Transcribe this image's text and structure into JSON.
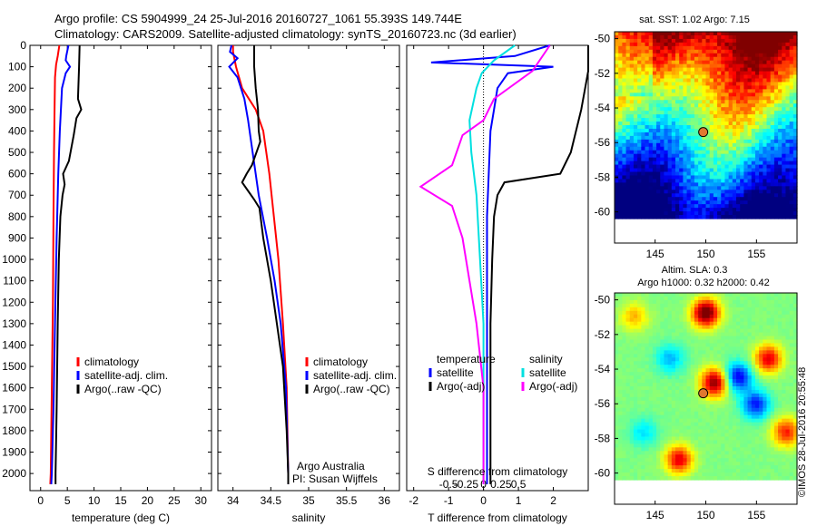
{
  "header": {
    "line1": "Argo profile: CS 5904999_24 25-Jul-2016 20160727_1061 55.393S 149.744E",
    "line2": "Climatology: CARS2009. Satellite-adjusted climatology: synTS_20160723.nc (3d earlier)"
  },
  "colors": {
    "climatology": "#ff0000",
    "satellite": "#0000ff",
    "argo": "#000000",
    "s_satellite": "#00e0e0",
    "s_argo": "#ff00ff"
  },
  "legend_labels": {
    "climatology": "climatology",
    "satellite_adj": "satellite-adj. clim.",
    "argo_raw": "Argo(..raw -QC)",
    "temperature": "temperature",
    "salinity": "salinity",
    "satellite": "satellite",
    "argo_adj": "Argo(-adj)"
  },
  "annotations": {
    "argo_australia": "Argo Australia",
    "pi": "PI: Susan Wijffels"
  },
  "copyright": "©IMOS 28-Jul-2016 20:55:48",
  "chart_data": [
    {
      "id": "temperature",
      "type": "line",
      "xlabel": "temperature (deg C)",
      "ylabel": "",
      "xlim": [
        -2,
        32
      ],
      "ylim": [
        2080,
        0
      ],
      "xticks": [
        0,
        5,
        10,
        15,
        20,
        25,
        30
      ],
      "yticks": [
        0,
        100,
        200,
        300,
        400,
        500,
        600,
        700,
        800,
        900,
        1000,
        1100,
        1200,
        1300,
        1400,
        1500,
        1600,
        1700,
        1800,
        1900,
        2000
      ],
      "legend": "lower-center",
      "series": [
        {
          "role": "climatology",
          "points": [
            [
              3.5,
              0
            ],
            [
              3.2,
              50
            ],
            [
              2.9,
              90
            ],
            [
              2.7,
              150
            ],
            [
              2.6,
              300
            ],
            [
              2.5,
              500
            ],
            [
              2.4,
              800
            ],
            [
              2.3,
              1200
            ],
            [
              2.1,
              1600
            ],
            [
              1.9,
              2000
            ],
            [
              1.8,
              2050
            ]
          ]
        },
        {
          "role": "satellite",
          "points": [
            [
              5.2,
              0
            ],
            [
              4.8,
              50
            ],
            [
              4.7,
              70
            ],
            [
              5.5,
              100
            ],
            [
              4.7,
              130
            ],
            [
              4.0,
              200
            ],
            [
              3.6,
              400
            ],
            [
              3.3,
              600
            ],
            [
              3.0,
              900
            ],
            [
              2.7,
              1300
            ],
            [
              2.4,
              1700
            ],
            [
              2.1,
              2000
            ],
            [
              2.0,
              2050
            ]
          ]
        },
        {
          "role": "argo",
          "points": [
            [
              7.3,
              0
            ],
            [
              7.2,
              100
            ],
            [
              7.0,
              250
            ],
            [
              7.6,
              300
            ],
            [
              6.7,
              340
            ],
            [
              6.2,
              420
            ],
            [
              5.3,
              540
            ],
            [
              4.2,
              600
            ],
            [
              4.5,
              650
            ],
            [
              4.1,
              700
            ],
            [
              3.7,
              800
            ],
            [
              3.4,
              1000
            ],
            [
              3.2,
              1300
            ],
            [
              3.0,
              1700
            ],
            [
              2.8,
              2000
            ],
            [
              2.8,
              2050
            ]
          ]
        }
      ]
    },
    {
      "id": "salinity",
      "type": "line",
      "xlabel": "salinity",
      "ylabel": "",
      "xlim": [
        33.8,
        36.2
      ],
      "ylim": [
        2080,
        0
      ],
      "xticks": [
        34,
        34.5,
        35,
        35.5,
        36
      ],
      "yticks": [
        0,
        100,
        200,
        300,
        400,
        500,
        600,
        700,
        800,
        900,
        1000,
        1100,
        1200,
        1300,
        1400,
        1500,
        1600,
        1700,
        1800,
        1900,
        2000
      ],
      "legend": "lower-center",
      "series": [
        {
          "role": "climatology",
          "points": [
            [
              34.0,
              0
            ],
            [
              34.0,
              30
            ],
            [
              34.04,
              100
            ],
            [
              34.12,
              200
            ],
            [
              34.3,
              300
            ],
            [
              34.4,
              400
            ],
            [
              34.48,
              600
            ],
            [
              34.54,
              800
            ],
            [
              34.6,
              1000
            ],
            [
              34.66,
              1300
            ],
            [
              34.71,
              1600
            ],
            [
              34.73,
              2000
            ],
            [
              34.73,
              2050
            ]
          ]
        },
        {
          "role": "satellite",
          "points": [
            [
              33.98,
              0
            ],
            [
              33.96,
              30
            ],
            [
              34.06,
              60
            ],
            [
              33.95,
              100
            ],
            [
              34.06,
              150
            ],
            [
              34.15,
              250
            ],
            [
              34.2,
              350
            ],
            [
              34.26,
              500
            ],
            [
              34.34,
              700
            ],
            [
              34.45,
              900
            ],
            [
              34.55,
              1100
            ],
            [
              34.63,
              1300
            ],
            [
              34.7,
              1600
            ],
            [
              34.73,
              2000
            ],
            [
              34.73,
              2050
            ]
          ]
        },
        {
          "role": "argo",
          "points": [
            [
              34.28,
              0
            ],
            [
              34.28,
              100
            ],
            [
              34.3,
              200
            ],
            [
              34.33,
              300
            ],
            [
              34.34,
              400
            ],
            [
              34.36,
              450
            ],
            [
              34.25,
              560
            ],
            [
              34.18,
              600
            ],
            [
              34.12,
              640
            ],
            [
              34.2,
              680
            ],
            [
              34.28,
              720
            ],
            [
              34.35,
              760
            ],
            [
              34.4,
              900
            ],
            [
              34.5,
              1100
            ],
            [
              34.58,
              1300
            ],
            [
              34.66,
              1500
            ],
            [
              34.71,
              1800
            ],
            [
              34.73,
              2000
            ],
            [
              34.73,
              2050
            ]
          ]
        }
      ]
    },
    {
      "id": "difference",
      "type": "line",
      "xlabel": "T difference from climatology",
      "ylabel": "",
      "title": "S difference from climatology",
      "xlim": [
        -2.2,
        3.0
      ],
      "ylim": [
        2080,
        0
      ],
      "xticks": [
        -2,
        -1,
        0,
        1,
        2
      ],
      "x2ticks": [
        -0.5,
        -0.25,
        0,
        0.25,
        0.5
      ],
      "yticks": [
        0,
        100,
        200,
        300,
        400,
        500,
        600,
        700,
        800,
        900,
        1000,
        1100,
        1200,
        1300,
        1400,
        1500,
        1600,
        1700,
        1800,
        1900,
        2000
      ],
      "legend": "lower-center",
      "series": [
        {
          "role": "satellite",
          "points": [
            [
              1.9,
              0
            ],
            [
              0.9,
              50
            ],
            [
              -1.5,
              80
            ],
            [
              2.0,
              100
            ],
            [
              0.7,
              130
            ],
            [
              0.4,
              200
            ],
            [
              0.3,
              300
            ],
            [
              0.2,
              400
            ],
            [
              0.15,
              600
            ],
            [
              0.1,
              800
            ],
            [
              0.1,
              1200
            ],
            [
              0.1,
              1600
            ],
            [
              0.1,
              2050
            ]
          ]
        },
        {
          "role": "argo",
          "points": [
            [
              3.0,
              0
            ],
            [
              3.0,
              120
            ],
            [
              2.8,
              300
            ],
            [
              2.5,
              500
            ],
            [
              2.2,
              600
            ],
            [
              0.6,
              640
            ],
            [
              0.4,
              700
            ],
            [
              0.3,
              800
            ],
            [
              0.25,
              1000
            ],
            [
              0.2,
              1300
            ],
            [
              0.2,
              1600
            ],
            [
              0.2,
              2000
            ],
            [
              0.2,
              2050
            ]
          ]
        },
        {
          "role": "s_satellite",
          "points": [
            [
              0.9,
              0
            ],
            [
              0.3,
              70
            ],
            [
              -0.05,
              130
            ],
            [
              -0.2,
              200
            ],
            [
              -0.4,
              350
            ],
            [
              -0.35,
              500
            ],
            [
              -0.2,
              700
            ],
            [
              -0.1,
              1000
            ],
            [
              0.0,
              1300
            ],
            [
              0.0,
              1600
            ],
            [
              0.0,
              2050
            ]
          ]
        },
        {
          "role": "s_argo",
          "points": [
            [
              1.9,
              0
            ],
            [
              1.4,
              120
            ],
            [
              0.3,
              250
            ],
            [
              0.0,
              350
            ],
            [
              -0.6,
              420
            ],
            [
              -0.9,
              560
            ],
            [
              -1.8,
              660
            ],
            [
              -0.9,
              750
            ],
            [
              -0.6,
              900
            ],
            [
              -0.4,
              1100
            ],
            [
              -0.2,
              1300
            ],
            [
              0.0,
              1600
            ],
            [
              0.0,
              2050
            ]
          ]
        }
      ]
    },
    {
      "id": "sst-map",
      "type": "heatmap",
      "title": "sat. SST: 1.02 Argo: 7.15",
      "xlim": [
        141,
        159
      ],
      "ylim": [
        -61.8,
        -49.6
      ],
      "xticks": [
        145,
        150,
        155
      ],
      "yticks": [
        -50,
        -52,
        -54,
        -56,
        -58,
        -60
      ],
      "marker": {
        "x": 149.744,
        "y": -55.393
      }
    },
    {
      "id": "sla-map",
      "type": "heatmap",
      "title": "Altim. SLA: 0.3",
      "subtitle": "Argo h1000: 0.32 h2000: 0.42",
      "xlim": [
        141,
        159
      ],
      "ylim": [
        -61.8,
        -49.6
      ],
      "xticks": [
        145,
        150,
        155
      ],
      "yticks": [
        -50,
        -52,
        -54,
        -56,
        -58,
        -60
      ],
      "marker": {
        "x": 149.744,
        "y": -55.393
      }
    }
  ]
}
